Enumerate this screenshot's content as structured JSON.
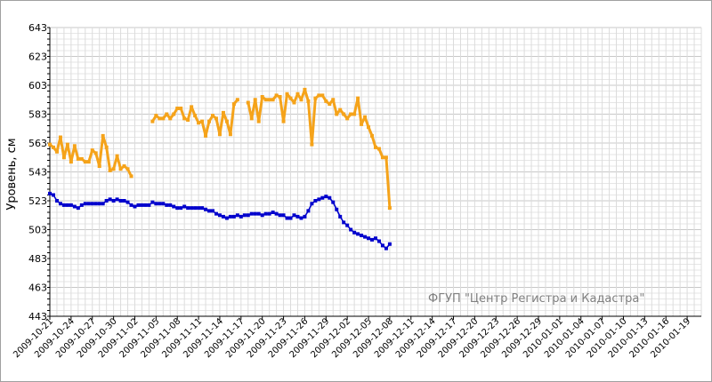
{
  "chart_data": {
    "type": "line",
    "title": "",
    "xlabel": "",
    "ylabel": "Уровень, см",
    "watermark": "ФГУП \"Центр Регистра и Кадастра\"",
    "ylim": [
      443,
      643
    ],
    "yticks": [
      443,
      463,
      483,
      503,
      523,
      543,
      563,
      583,
      603,
      623,
      643
    ],
    "grid": true,
    "legend": "none",
    "x_start": "2009-10-21",
    "x_end": "2010-01-21",
    "x_tick_labels": [
      "2009-10-21",
      "2009-10-24",
      "2009-10-27",
      "2009-10-30",
      "2009-11-02",
      "2009-11-05",
      "2009-11-08",
      "2009-11-11",
      "2009-11-14",
      "2009-11-17",
      "2009-11-20",
      "2009-11-23",
      "2009-11-26",
      "2009-11-29",
      "2009-12-02",
      "2009-12-05",
      "2009-12-08",
      "2009-12-11",
      "2009-12-14",
      "2009-12-17",
      "2009-12-20",
      "2009-12-23",
      "2009-12-26",
      "2009-12-29",
      "2010-01-01",
      "2010-01-04",
      "2010-01-07",
      "2010-01-10",
      "2010-01-13",
      "2010-01-16",
      "2010-01-19"
    ],
    "series": [
      {
        "color": "#f5a31a",
        "step_days": 0.5,
        "values": [
          562,
          560,
          557,
          567,
          553,
          562,
          550,
          561,
          552,
          552,
          550,
          550,
          558,
          556,
          547,
          568,
          560,
          544,
          545,
          554,
          545,
          547,
          545,
          540,
          null,
          null,
          null,
          null,
          null,
          578,
          582,
          580,
          580,
          583,
          580,
          583,
          587,
          587,
          580,
          579,
          588,
          582,
          577,
          578,
          568,
          578,
          582,
          580,
          569,
          584,
          578,
          569,
          590,
          593,
          null,
          null,
          591,
          580,
          593,
          578,
          595,
          593,
          593,
          593,
          596,
          595,
          578,
          597,
          594,
          591,
          597,
          593,
          600,
          592,
          562,
          594,
          596,
          596,
          592,
          590,
          593,
          583,
          586,
          583,
          580,
          583,
          583,
          594,
          576,
          581,
          574,
          568,
          560,
          559,
          553,
          553,
          518
        ]
      },
      {
        "color": "#0000cc",
        "step_days": 0.5,
        "values": [
          528,
          527,
          523,
          521,
          520,
          520,
          520,
          519,
          518,
          520,
          521,
          521,
          521,
          521,
          521,
          521,
          523,
          524,
          523,
          524,
          523,
          523,
          522,
          520,
          519,
          520,
          520,
          520,
          520,
          522,
          521,
          521,
          521,
          520,
          520,
          519,
          518,
          518,
          519,
          518,
          518,
          518,
          518,
          518,
          517,
          516,
          516,
          514,
          513,
          512,
          511,
          512,
          512,
          513,
          512,
          513,
          513,
          514,
          514,
          514,
          513,
          514,
          514,
          515,
          514,
          513,
          513,
          511,
          511,
          513,
          512,
          511,
          512,
          516,
          521,
          523,
          524,
          525,
          526,
          525,
          522,
          517,
          512,
          508,
          506,
          503,
          501,
          500,
          499,
          498,
          497,
          496,
          497,
          495,
          492,
          490,
          493
        ]
      }
    ]
  }
}
